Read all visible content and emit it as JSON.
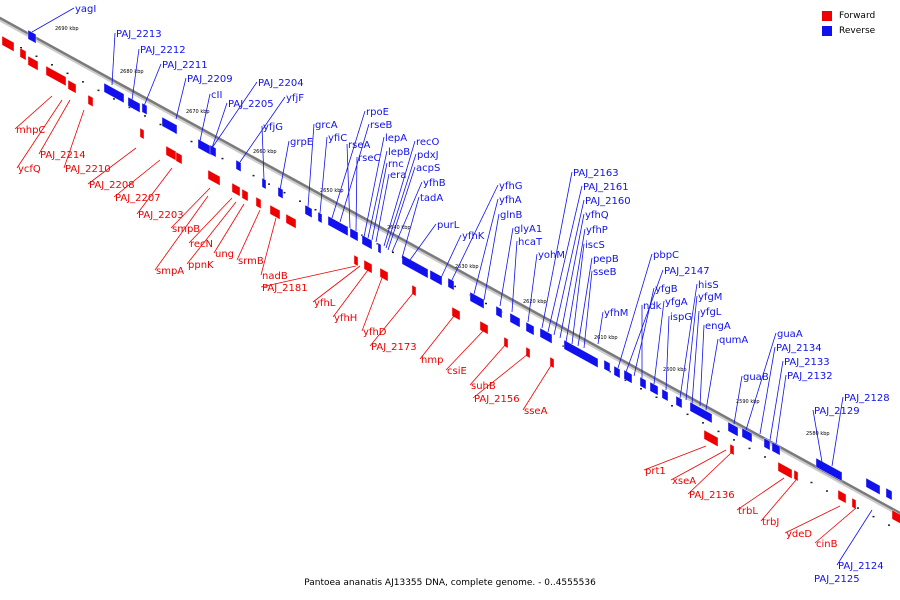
{
  "caption": "Pantoea ananatis AJ13355 DNA, complete genome. - 0..4555536",
  "legend": [
    {
      "label": "Forward",
      "color": "#ee0000"
    },
    {
      "label": "Reverse",
      "color": "#1111ee"
    }
  ],
  "colors": {
    "forward": "#ee0000",
    "reverse": "#1111ee",
    "backbone": "#7a7a7a"
  },
  "ticks": [
    "2690 kbp",
    "2680 kbp",
    "2670 kbp",
    "2660 kbp",
    "2650 kbp",
    "2640 kbp",
    "2630 kbp",
    "2620 kbp",
    "2610 kbp",
    "2600 kbp",
    "2590 kbp",
    "2580 kbp"
  ],
  "genes": {
    "reverse": [
      "yagI",
      "PAJ_2213",
      "PAJ_2212",
      "PAJ_2211",
      "PAJ_2209",
      "cII",
      "PAJ_2204",
      "PAJ_2205",
      "yfjF",
      "yfjG",
      "grpE",
      "grcA",
      "yfiC",
      "rpoE",
      "rseB",
      "rseA",
      "rseC",
      "lepA",
      "lepB",
      "rnc",
      "era",
      "recO",
      "pdxJ",
      "acpS",
      "yfhB",
      "tadA",
      "purL",
      "yfhK",
      "yfhG",
      "yfhA",
      "glnB",
      "glyA1",
      "hcaT",
      "yohM",
      "PAJ_2163",
      "PAJ_2161",
      "PAJ_2160",
      "yfhQ",
      "yfhP",
      "iscS",
      "pepB",
      "sseB",
      "yfhM",
      "pbpC",
      "PAJ_2147",
      "yfgB",
      "ndk",
      "yfgA",
      "ispG",
      "hisS",
      "yfgM",
      "yfgL",
      "engA",
      "qumA",
      "guaB",
      "guaA",
      "PAJ_2134",
      "PAJ_2133",
      "PAJ_2132",
      "PAJ_2129",
      "PAJ_2128",
      "PAJ_2124",
      "PAJ_2125"
    ],
    "forward": [
      "mhpC",
      "ycfQ",
      "PAJ_2214",
      "PAJ_2210",
      "PAJ_2208",
      "PAJ_2207",
      "PAJ_2203",
      "smpB",
      "recN",
      "smpA",
      "ppnK",
      "ung",
      "srmB",
      "nadB",
      "PAJ_2181",
      "yfhL",
      "yfhH",
      "yfhD",
      "PAJ_2173",
      "hmp",
      "csiE",
      "suhB",
      "PAJ_2156",
      "sseA",
      "prt1",
      "xseA",
      "PAJ_2136",
      "trbL",
      "trbJ",
      "ydeD",
      "cinB"
    ]
  }
}
